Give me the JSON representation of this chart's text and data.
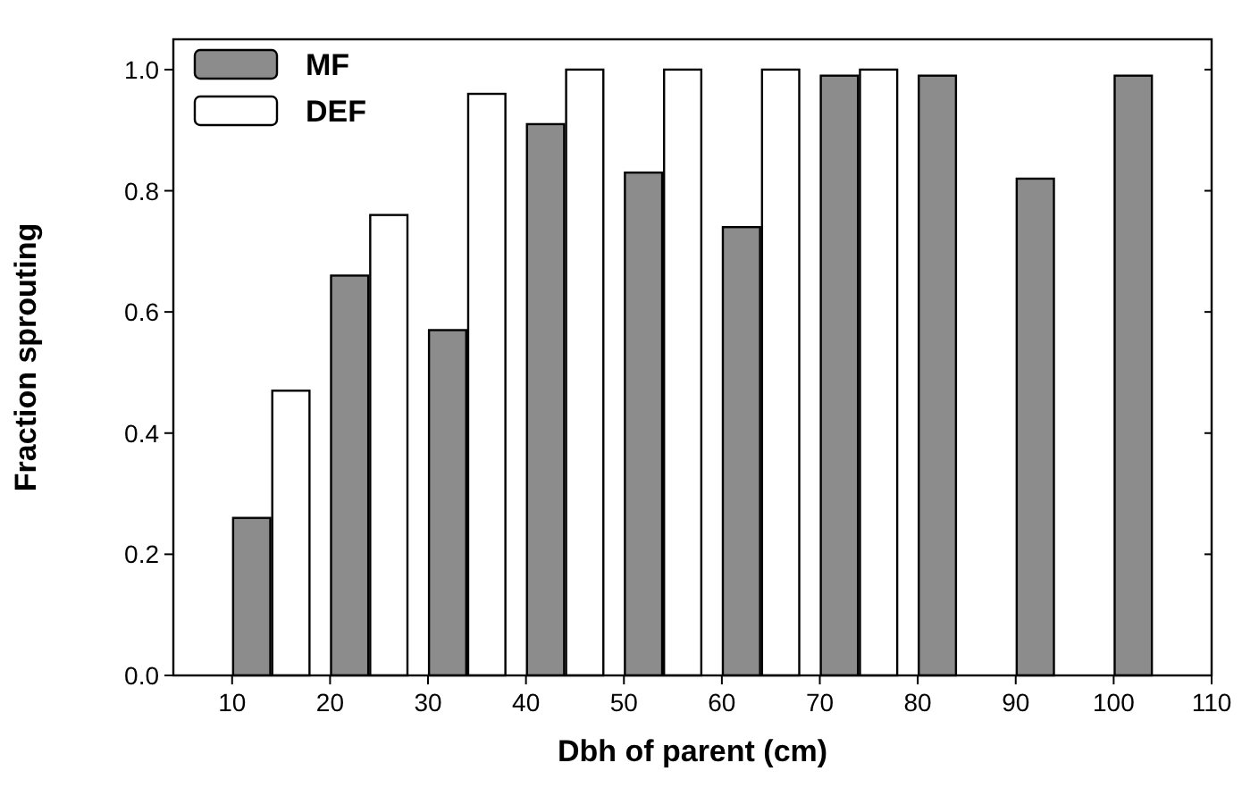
{
  "chart_data": {
    "type": "bar",
    "xlabel": "Dbh of parent (cm)",
    "ylabel": "Fraction sprouting",
    "xlim": [
      4,
      110
    ],
    "xticks": [
      10,
      20,
      30,
      40,
      50,
      60,
      70,
      80,
      90,
      100,
      110
    ],
    "ylim": [
      0,
      1.05
    ],
    "yticks": [
      {
        "value": 0,
        "label": "0.0"
      },
      {
        "value": 0.2,
        "label": "0.2"
      },
      {
        "value": 0.4,
        "label": "0.4"
      },
      {
        "value": 0.6,
        "label": "0.6"
      },
      {
        "value": 0.8,
        "label": "0.8"
      },
      {
        "value": 1,
        "label": "1.0"
      }
    ],
    "legend": "top left",
    "grid": false,
    "series": [
      {
        "name": "MF",
        "color": "#8c8c8c",
        "x": [
          12,
          22,
          32,
          42,
          52,
          62,
          72,
          82,
          92,
          102
        ],
        "values": [
          0.26,
          0.66,
          0.57,
          0.91,
          0.83,
          0.74,
          0.99,
          0.99,
          0.82,
          0.99
        ]
      },
      {
        "name": "DEF",
        "color": "#ffffff",
        "x": [
          16,
          26,
          36,
          46,
          56,
          66,
          76
        ],
        "values": [
          0.47,
          0.76,
          0.96,
          1.0,
          1.0,
          1.0,
          1.0
        ]
      }
    ]
  }
}
